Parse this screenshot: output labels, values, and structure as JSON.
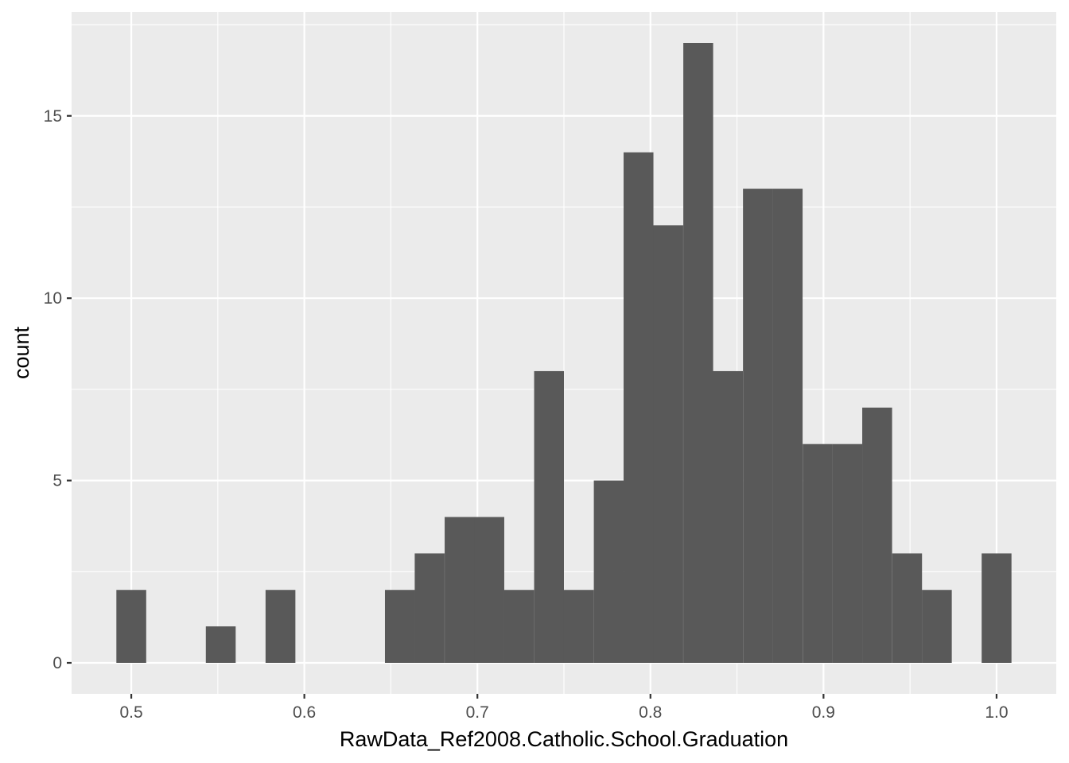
{
  "chart_data": {
    "type": "bar",
    "subtype": "histogram",
    "title": "",
    "xlabel": "RawData_Ref2008.Catholic.School.Graduation",
    "ylabel": "count",
    "xlim": [
      0.4655,
      1.0345
    ],
    "ylim": [
      -0.85,
      17.85
    ],
    "x_ticks": [
      {
        "value": 0.5,
        "label": "0.5"
      },
      {
        "value": 0.6,
        "label": "0.6"
      },
      {
        "value": 0.7,
        "label": "0.7"
      },
      {
        "value": 0.8,
        "label": "0.8"
      },
      {
        "value": 0.9,
        "label": "0.9"
      },
      {
        "value": 1.0,
        "label": "1.0"
      }
    ],
    "y_ticks": [
      {
        "value": 0,
        "label": "0"
      },
      {
        "value": 5,
        "label": "5"
      },
      {
        "value": 10,
        "label": "10"
      },
      {
        "value": 15,
        "label": "15"
      }
    ],
    "bin_width": 0.01724,
    "bin_centers": [
      0.5,
      0.5172,
      0.5345,
      0.5517,
      0.569,
      0.5862,
      0.6034,
      0.6207,
      0.6379,
      0.6552,
      0.6724,
      0.6897,
      0.7069,
      0.7241,
      0.7414,
      0.7586,
      0.7759,
      0.7931,
      0.8103,
      0.8276,
      0.8448,
      0.8621,
      0.8793,
      0.8966,
      0.9138,
      0.931,
      0.9483,
      0.9655,
      0.9828,
      1.0
    ],
    "counts": [
      2,
      0,
      0,
      1,
      0,
      2,
      0,
      0,
      0,
      2,
      3,
      4,
      4,
      2,
      8,
      2,
      5,
      14,
      12,
      17,
      8,
      13,
      13,
      6,
      6,
      7,
      3,
      2,
      0,
      3
    ],
    "grid": true,
    "colors": {
      "panel_background": "#ebebeb",
      "grid_major": "#ffffff",
      "bar_fill": "#595959",
      "tick_text": "#4d4d4d",
      "axis_title_text": "#000000"
    }
  }
}
